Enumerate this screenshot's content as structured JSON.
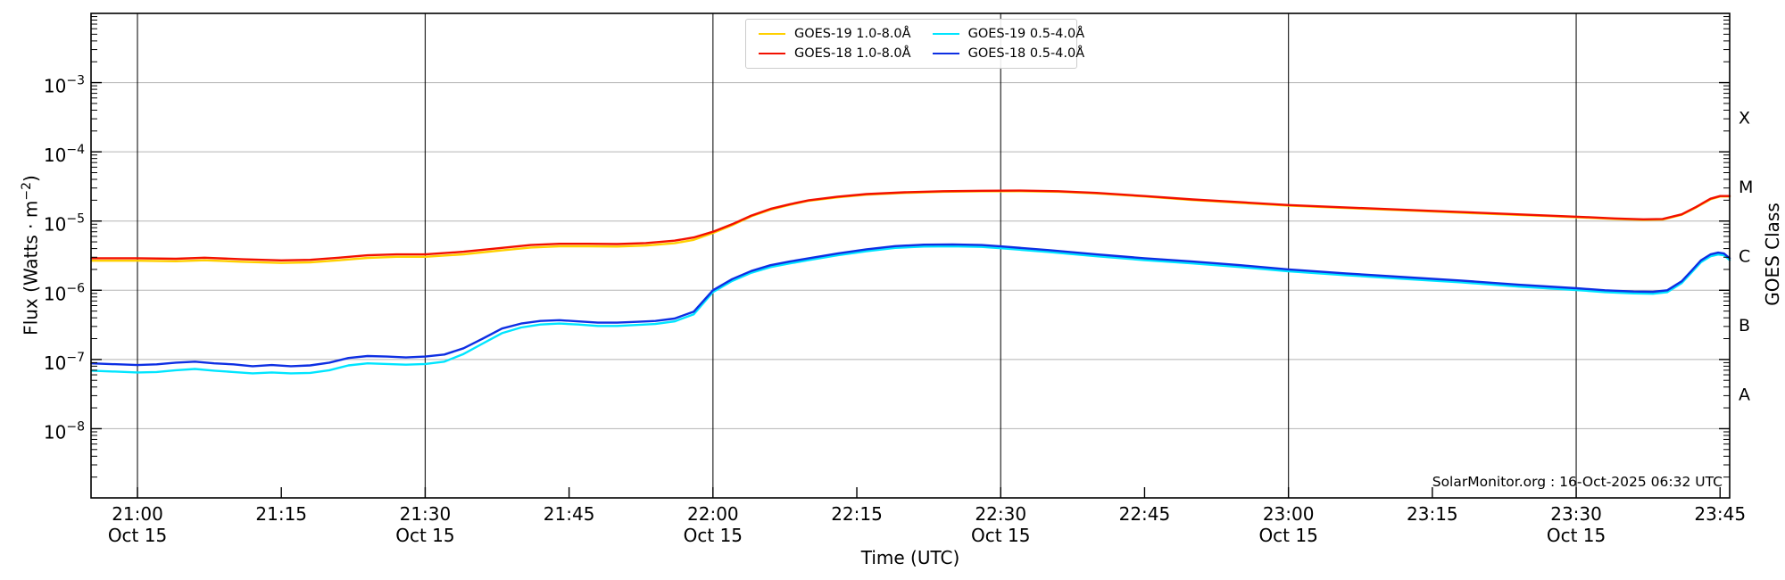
{
  "window": {
    "background": "#ffffff"
  },
  "axes": {
    "xlabel": "Time (UTC)",
    "ylabel_prefix": "Flux (Watts · m",
    "ylabel_sup": "−2",
    "ylabel_suffix": ")",
    "right_axis_title": "GOES Class",
    "x_range_minutes": {
      "min": -4.84,
      "max": 166.0,
      "epoch": "21:00 UTC Oct 15"
    },
    "ylim": [
      1e-09,
      0.01
    ],
    "ytick_exponents": [
      -3,
      -4,
      -5,
      -6,
      -7,
      -8
    ],
    "xticks": [
      {
        "t": 0,
        "label": "21:00",
        "sub": "Oct 15"
      },
      {
        "t": 15,
        "label": "21:15",
        "sub": ""
      },
      {
        "t": 30,
        "label": "21:30",
        "sub": "Oct 15"
      },
      {
        "t": 45,
        "label": "21:45",
        "sub": ""
      },
      {
        "t": 60,
        "label": "22:00",
        "sub": "Oct 15"
      },
      {
        "t": 75,
        "label": "22:15",
        "sub": ""
      },
      {
        "t": 90,
        "label": "22:30",
        "sub": "Oct 15"
      },
      {
        "t": 105,
        "label": "22:45",
        "sub": ""
      },
      {
        "t": 120,
        "label": "23:00",
        "sub": "Oct 15"
      },
      {
        "t": 135,
        "label": "23:15",
        "sub": ""
      },
      {
        "t": 150,
        "label": "23:30",
        "sub": "Oct 15"
      },
      {
        "t": 165,
        "label": "23:45",
        "sub": ""
      }
    ],
    "hour_line_times": [
      0,
      30,
      60,
      90,
      120,
      150
    ],
    "goes_classes": [
      {
        "label": "A",
        "center_exp": -7.5
      },
      {
        "label": "B",
        "center_exp": -6.5
      },
      {
        "label": "C",
        "center_exp": -5.5
      },
      {
        "label": "M",
        "center_exp": -4.5
      },
      {
        "label": "X",
        "center_exp": -3.5
      }
    ],
    "colors": {
      "gridline": "#b5b5b5",
      "hour_line": "#000000",
      "spine": "#000000"
    }
  },
  "legend": {
    "items": [
      {
        "label": "GOES-19 1.0-8.0Å",
        "color": "#ffd000"
      },
      {
        "label": "GOES-18 1.0-8.0Å",
        "color": "#f21000"
      },
      {
        "label": "GOES-19 0.5-4.0Å",
        "color": "#00e5ff"
      },
      {
        "label": "GOES-18 0.5-4.0Å",
        "color": "#0d2fe3"
      }
    ]
  },
  "annotation": {
    "text": "SolarMonitor.org : 16-Oct-2025 06:32 UTC"
  },
  "chart_data": {
    "type": "line",
    "title": "",
    "xlabel": "Time (UTC)",
    "ylabel": "Flux (Watts · m−2)",
    "x_unit": "minutes after 21:00 UTC, Oct 15",
    "y_unit": "Watts per square meter (log scale)",
    "ylim": [
      1e-09,
      0.01
    ],
    "grid": "horizontal decades + vertical half-hour lines",
    "legend_position": "top center",
    "series": [
      {
        "name": "GOES-19 1.0-8.0Å",
        "color": "#ffd000",
        "points": [
          [
            -4.8,
            2.67e-06
          ],
          [
            0,
            2.67e-06
          ],
          [
            4,
            2.62e-06
          ],
          [
            7,
            2.71e-06
          ],
          [
            11,
            2.58e-06
          ],
          [
            15,
            2.48e-06
          ],
          [
            18,
            2.53e-06
          ],
          [
            21,
            2.71e-06
          ],
          [
            24,
            2.94e-06
          ],
          [
            27,
            3.04e-06
          ],
          [
            30,
            3.04e-06
          ],
          [
            34,
            3.31e-06
          ],
          [
            38,
            3.77e-06
          ],
          [
            41,
            4.14e-06
          ],
          [
            44,
            4.32e-06
          ],
          [
            47,
            4.32e-06
          ],
          [
            50,
            4.28e-06
          ],
          [
            53,
            4.42e-06
          ],
          [
            56,
            4.78e-06
          ],
          [
            58,
            5.34e-06
          ],
          [
            60,
            6.72e-06
          ],
          [
            62,
            8.7e-06
          ],
          [
            64,
            1.17e-05
          ],
          [
            66,
            1.46e-05
          ],
          [
            68,
            1.71e-05
          ],
          [
            70,
            1.96e-05
          ],
          [
            73,
            2.2e-05
          ],
          [
            76,
            2.4e-05
          ],
          [
            80,
            2.55e-05
          ],
          [
            84,
            2.65e-05
          ],
          [
            88,
            2.69e-05
          ],
          [
            92,
            2.7e-05
          ],
          [
            96,
            2.65e-05
          ],
          [
            100,
            2.5e-05
          ],
          [
            105,
            2.26e-05
          ],
          [
            110,
            2.01e-05
          ],
          [
            115,
            1.83e-05
          ],
          [
            120,
            1.67e-05
          ],
          [
            127,
            1.52e-05
          ],
          [
            134,
            1.39e-05
          ],
          [
            141,
            1.27e-05
          ],
          [
            147,
            1.18e-05
          ],
          [
            151,
            1.12e-05
          ],
          [
            154,
            1.07e-05
          ],
          [
            157,
            1.04e-05
          ],
          [
            159,
            1.05e-05
          ],
          [
            161,
            1.23e-05
          ],
          [
            162.5,
            1.57e-05
          ],
          [
            164,
            2.06e-05
          ],
          [
            165,
            2.26e-05
          ],
          [
            166,
            2.26e-05
          ]
        ]
      },
      {
        "name": "GOES-18 1.0-8.0Å",
        "color": "#f21000",
        "points": [
          [
            -4.8,
            2.9e-06
          ],
          [
            0,
            2.9e-06
          ],
          [
            4,
            2.85e-06
          ],
          [
            7,
            2.95e-06
          ],
          [
            11,
            2.8e-06
          ],
          [
            15,
            2.7e-06
          ],
          [
            18,
            2.75e-06
          ],
          [
            21,
            2.95e-06
          ],
          [
            24,
            3.2e-06
          ],
          [
            27,
            3.3e-06
          ],
          [
            30,
            3.3e-06
          ],
          [
            34,
            3.6e-06
          ],
          [
            38,
            4.1e-06
          ],
          [
            41,
            4.5e-06
          ],
          [
            44,
            4.7e-06
          ],
          [
            47,
            4.7e-06
          ],
          [
            50,
            4.65e-06
          ],
          [
            53,
            4.8e-06
          ],
          [
            56,
            5.2e-06
          ],
          [
            58,
            5.8e-06
          ],
          [
            60,
            7e-06
          ],
          [
            62,
            9e-06
          ],
          [
            64,
            1.2e-05
          ],
          [
            66,
            1.5e-05
          ],
          [
            68,
            1.75e-05
          ],
          [
            70,
            2e-05
          ],
          [
            73,
            2.25e-05
          ],
          [
            76,
            2.45e-05
          ],
          [
            80,
            2.6e-05
          ],
          [
            84,
            2.7e-05
          ],
          [
            88,
            2.74e-05
          ],
          [
            92,
            2.75e-05
          ],
          [
            96,
            2.7e-05
          ],
          [
            100,
            2.55e-05
          ],
          [
            105,
            2.3e-05
          ],
          [
            110,
            2.05e-05
          ],
          [
            115,
            1.87e-05
          ],
          [
            120,
            1.7e-05
          ],
          [
            127,
            1.55e-05
          ],
          [
            134,
            1.42e-05
          ],
          [
            141,
            1.3e-05
          ],
          [
            147,
            1.2e-05
          ],
          [
            151,
            1.14e-05
          ],
          [
            154,
            1.09e-05
          ],
          [
            157,
            1.06e-05
          ],
          [
            159,
            1.07e-05
          ],
          [
            161,
            1.25e-05
          ],
          [
            162.5,
            1.6e-05
          ],
          [
            164,
            2.1e-05
          ],
          [
            165,
            2.3e-05
          ],
          [
            166,
            2.3e-05
          ]
        ]
      },
      {
        "name": "GOES-19 0.5-4.0Å",
        "color": "#00e5ff",
        "points": [
          [
            -4.8,
            6.9e-08
          ],
          [
            0,
            6.5e-08
          ],
          [
            2,
            6.6e-08
          ],
          [
            4,
            7e-08
          ],
          [
            6,
            7.3e-08
          ],
          [
            8,
            6.9e-08
          ],
          [
            10,
            6.6e-08
          ],
          [
            12,
            6.3e-08
          ],
          [
            14,
            6.5e-08
          ],
          [
            16,
            6.3e-08
          ],
          [
            18,
            6.4e-08
          ],
          [
            20,
            7e-08
          ],
          [
            22,
            8.2e-08
          ],
          [
            24,
            8.8e-08
          ],
          [
            26,
            8.6e-08
          ],
          [
            28,
            8.4e-08
          ],
          [
            30,
            8.6e-08
          ],
          [
            32,
            9.3e-08
          ],
          [
            34,
            1.2e-07
          ],
          [
            36,
            1.7e-07
          ],
          [
            38,
            2.4e-07
          ],
          [
            40,
            2.9e-07
          ],
          [
            42,
            3.2e-07
          ],
          [
            44,
            3.3e-07
          ],
          [
            46,
            3.2e-07
          ],
          [
            48,
            3.05e-07
          ],
          [
            50,
            3.05e-07
          ],
          [
            52,
            3.15e-07
          ],
          [
            54,
            3.25e-07
          ],
          [
            56,
            3.55e-07
          ],
          [
            58,
            4.5e-07
          ],
          [
            60,
            9.4e-07
          ],
          [
            62,
            1.36e-06
          ],
          [
            64,
            1.79e-06
          ],
          [
            66,
            2.16e-06
          ],
          [
            68,
            2.44e-06
          ],
          [
            70,
            2.73e-06
          ],
          [
            73,
            3.2e-06
          ],
          [
            76,
            3.67e-06
          ],
          [
            79,
            4.09e-06
          ],
          [
            82,
            4.28e-06
          ],
          [
            85,
            4.32e-06
          ],
          [
            88,
            4.23e-06
          ],
          [
            90,
            4.04e-06
          ],
          [
            95,
            3.57e-06
          ],
          [
            100,
            3.1e-06
          ],
          [
            105,
            2.73e-06
          ],
          [
            110,
            2.44e-06
          ],
          [
            115,
            2.16e-06
          ],
          [
            120,
            1.88e-06
          ],
          [
            126,
            1.65e-06
          ],
          [
            132,
            1.46e-06
          ],
          [
            138,
            1.3e-06
          ],
          [
            144,
            1.13e-06
          ],
          [
            150,
            1.01e-06
          ],
          [
            153,
            9.4e-07
          ],
          [
            156,
            9e-07
          ],
          [
            158,
            8.9e-07
          ],
          [
            159.5,
            9.4e-07
          ],
          [
            161,
            1.27e-06
          ],
          [
            162,
            1.79e-06
          ],
          [
            163,
            2.54e-06
          ],
          [
            164,
            3.1e-06
          ],
          [
            164.8,
            3.29e-06
          ],
          [
            165.4,
            3.2e-06
          ],
          [
            166,
            2.73e-06
          ]
        ]
      },
      {
        "name": "GOES-18 0.5-4.0Å",
        "color": "#0d2fe3",
        "points": [
          [
            -4.8,
            8.8e-08
          ],
          [
            0,
            8.3e-08
          ],
          [
            2,
            8.5e-08
          ],
          [
            4,
            9e-08
          ],
          [
            6,
            9.3e-08
          ],
          [
            8,
            8.8e-08
          ],
          [
            10,
            8.5e-08
          ],
          [
            12,
            8e-08
          ],
          [
            14,
            8.3e-08
          ],
          [
            16,
            8e-08
          ],
          [
            18,
            8.2e-08
          ],
          [
            20,
            9e-08
          ],
          [
            22,
            1.05e-07
          ],
          [
            24,
            1.12e-07
          ],
          [
            26,
            1.1e-07
          ],
          [
            28,
            1.07e-07
          ],
          [
            30,
            1.1e-07
          ],
          [
            32,
            1.18e-07
          ],
          [
            34,
            1.45e-07
          ],
          [
            36,
            2e-07
          ],
          [
            38,
            2.8e-07
          ],
          [
            40,
            3.3e-07
          ],
          [
            42,
            3.6e-07
          ],
          [
            44,
            3.7e-07
          ],
          [
            46,
            3.55e-07
          ],
          [
            48,
            3.4e-07
          ],
          [
            50,
            3.4e-07
          ],
          [
            52,
            3.5e-07
          ],
          [
            54,
            3.6e-07
          ],
          [
            56,
            3.9e-07
          ],
          [
            58,
            4.9e-07
          ],
          [
            60,
            1e-06
          ],
          [
            62,
            1.45e-06
          ],
          [
            64,
            1.9e-06
          ],
          [
            66,
            2.3e-06
          ],
          [
            68,
            2.6e-06
          ],
          [
            70,
            2.9e-06
          ],
          [
            73,
            3.4e-06
          ],
          [
            76,
            3.9e-06
          ],
          [
            79,
            4.35e-06
          ],
          [
            82,
            4.55e-06
          ],
          [
            85,
            4.6e-06
          ],
          [
            88,
            4.5e-06
          ],
          [
            90,
            4.3e-06
          ],
          [
            95,
            3.8e-06
          ],
          [
            100,
            3.3e-06
          ],
          [
            105,
            2.9e-06
          ],
          [
            110,
            2.6e-06
          ],
          [
            115,
            2.3e-06
          ],
          [
            120,
            2e-06
          ],
          [
            126,
            1.75e-06
          ],
          [
            132,
            1.55e-06
          ],
          [
            138,
            1.38e-06
          ],
          [
            144,
            1.2e-06
          ],
          [
            150,
            1.07e-06
          ],
          [
            153,
            1e-06
          ],
          [
            156,
            9.6e-07
          ],
          [
            158,
            9.5e-07
          ],
          [
            159.5,
            1e-06
          ],
          [
            161,
            1.35e-06
          ],
          [
            162,
            1.9e-06
          ],
          [
            163,
            2.7e-06
          ],
          [
            164,
            3.3e-06
          ],
          [
            164.8,
            3.5e-06
          ],
          [
            165.4,
            3.4e-06
          ],
          [
            166,
            2.9e-06
          ]
        ]
      }
    ]
  }
}
